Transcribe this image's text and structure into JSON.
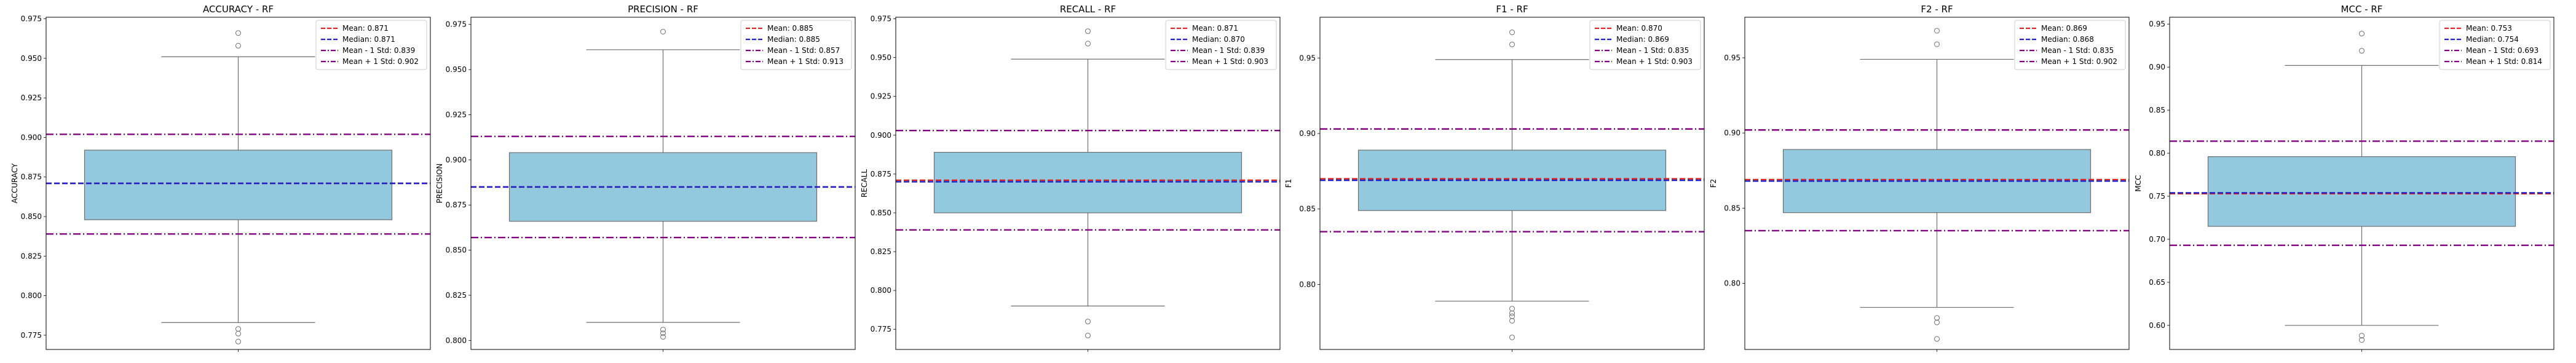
{
  "colors": {
    "box_fill": "#92c9df",
    "box_edge": "#6e6e6e",
    "mean_line": "#d62728",
    "median_line": "#1f1fc8",
    "std_line": "#800080",
    "axis": "#000000",
    "background": "#ffffff"
  },
  "chart_data": [
    {
      "type": "box",
      "title": "ACCURACY - RF",
      "ylabel": "ACCURACY",
      "ylim": [
        0.766,
        0.976
      ],
      "yticks": [
        "0.775",
        "0.800",
        "0.825",
        "0.850",
        "0.875",
        "0.900",
        "0.925",
        "0.950",
        "0.975"
      ],
      "ytick_values": [
        0.775,
        0.8,
        0.825,
        0.85,
        0.875,
        0.9,
        0.925,
        0.95,
        0.975
      ],
      "box": {
        "q1": 0.848,
        "median": 0.871,
        "q3": 0.892,
        "whisker_low": 0.783,
        "whisker_high": 0.951
      },
      "outliers": [
        0.966,
        0.958,
        0.779,
        0.776,
        0.771
      ],
      "mean": 0.871,
      "mean_minus_std": 0.839,
      "mean_plus_std": 0.902,
      "legend": [
        "Mean: 0.871",
        "Median: 0.871",
        "Mean - 1 Std: 0.839",
        "Mean + 1 Std: 0.902"
      ],
      "legend_position": "upper-right",
      "grid": false
    },
    {
      "type": "box",
      "title": "PRECISION - RF",
      "ylabel": "PRECISION",
      "ylim": [
        0.795,
        0.979
      ],
      "yticks": [
        "0.800",
        "0.825",
        "0.850",
        "0.875",
        "0.900",
        "0.925",
        "0.950",
        "0.975"
      ],
      "ytick_values": [
        0.8,
        0.825,
        0.85,
        0.875,
        0.9,
        0.925,
        0.95,
        0.975
      ],
      "box": {
        "q1": 0.866,
        "median": 0.885,
        "q3": 0.904,
        "whisker_low": 0.81,
        "whisker_high": 0.961
      },
      "outliers": [
        0.971,
        0.806,
        0.804,
        0.802
      ],
      "mean": 0.885,
      "mean_minus_std": 0.857,
      "mean_plus_std": 0.913,
      "legend": [
        "Mean: 0.885",
        "Median: 0.885",
        "Mean - 1 Std: 0.857",
        "Mean + 1 Std: 0.913"
      ],
      "legend_position": "upper-right",
      "grid": false
    },
    {
      "type": "box",
      "title": "RECALL - RF",
      "ylabel": "RECALL",
      "ylim": [
        0.762,
        0.976
      ],
      "yticks": [
        "0.775",
        "0.800",
        "0.825",
        "0.850",
        "0.875",
        "0.900",
        "0.925",
        "0.950",
        "0.975"
      ],
      "ytick_values": [
        0.775,
        0.8,
        0.825,
        0.85,
        0.875,
        0.9,
        0.925,
        0.95,
        0.975
      ],
      "box": {
        "q1": 0.85,
        "median": 0.87,
        "q3": 0.889,
        "whisker_low": 0.79,
        "whisker_high": 0.949
      },
      "outliers": [
        0.967,
        0.959,
        0.78,
        0.771
      ],
      "mean": 0.871,
      "mean_minus_std": 0.839,
      "mean_plus_std": 0.903,
      "legend": [
        "Mean: 0.871",
        "Median: 0.870",
        "Mean - 1 Std: 0.839",
        "Mean + 1 Std: 0.903"
      ],
      "legend_position": "upper-right",
      "grid": false
    },
    {
      "type": "box",
      "title": "F1 - RF",
      "ylabel": "F1",
      "ylim": [
        0.757,
        0.977
      ],
      "yticks": [
        "0.80",
        "0.85",
        "0.90",
        "0.95"
      ],
      "ytick_values": [
        0.8,
        0.85,
        0.9,
        0.95
      ],
      "box": {
        "q1": 0.849,
        "median": 0.869,
        "q3": 0.889,
        "whisker_low": 0.789,
        "whisker_high": 0.949
      },
      "outliers": [
        0.967,
        0.959,
        0.784,
        0.781,
        0.779,
        0.776,
        0.765
      ],
      "mean": 0.87,
      "mean_minus_std": 0.835,
      "mean_plus_std": 0.903,
      "legend": [
        "Mean: 0.870",
        "Median: 0.869",
        "Mean - 1 Std: 0.835",
        "Mean + 1 Std: 0.903"
      ],
      "legend_position": "upper-right",
      "grid": false
    },
    {
      "type": "box",
      "title": "F2 - RF",
      "ylabel": "F2",
      "ylim": [
        0.756,
        0.977
      ],
      "yticks": [
        "0.80",
        "0.85",
        "0.90",
        "0.95"
      ],
      "ytick_values": [
        0.8,
        0.85,
        0.9,
        0.95
      ],
      "box": {
        "q1": 0.847,
        "median": 0.868,
        "q3": 0.889,
        "whisker_low": 0.784,
        "whisker_high": 0.949
      },
      "outliers": [
        0.968,
        0.959,
        0.777,
        0.774,
        0.763
      ],
      "mean": 0.869,
      "mean_minus_std": 0.835,
      "mean_plus_std": 0.902,
      "legend": [
        "Mean: 0.869",
        "Median: 0.868",
        "Mean - 1 Std: 0.835",
        "Mean + 1 Std: 0.902"
      ],
      "legend_position": "upper-right",
      "grid": false
    },
    {
      "type": "box",
      "title": "MCC - RF",
      "ylabel": "MCC",
      "ylim": [
        0.572,
        0.958
      ],
      "yticks": [
        "0.60",
        "0.65",
        "0.70",
        "0.75",
        "0.80",
        "0.85",
        "0.90",
        "0.95"
      ],
      "ytick_values": [
        0.6,
        0.65,
        0.7,
        0.75,
        0.8,
        0.85,
        0.9,
        0.95
      ],
      "box": {
        "q1": 0.715,
        "median": 0.754,
        "q3": 0.796,
        "whisker_low": 0.6,
        "whisker_high": 0.902
      },
      "outliers": [
        0.939,
        0.919,
        0.588,
        0.583
      ],
      "mean": 0.753,
      "mean_minus_std": 0.693,
      "mean_plus_std": 0.814,
      "legend": [
        "Mean: 0.753",
        "Median: 0.754",
        "Mean - 1 Std: 0.693",
        "Mean + 1 Std: 0.814"
      ],
      "legend_position": "upper-right",
      "grid": false
    }
  ]
}
